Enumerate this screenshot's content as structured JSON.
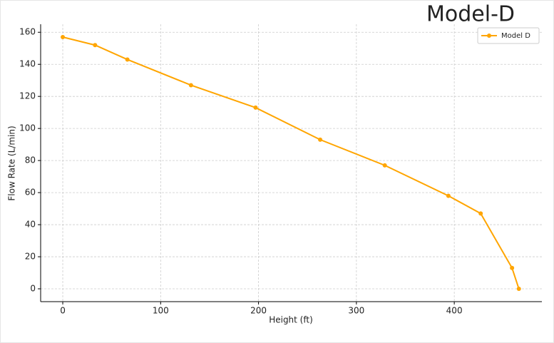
{
  "chart_data": {
    "type": "line",
    "title": "Model-D",
    "x_label": "Height (ft)",
    "y_label": "Flow Rate (L/min)",
    "x": [
      0,
      33,
      66,
      131,
      197,
      263,
      329,
      394,
      427,
      459,
      466
    ],
    "series": [
      {
        "name": "Model D",
        "color": "#ffa500",
        "values": [
          157,
          152,
          143,
          127,
          113,
          93,
          77,
          58,
          47,
          13,
          0
        ]
      }
    ],
    "xlim": [
      -22.6,
      489.5
    ],
    "xticks": [
      0,
      100,
      200,
      300,
      400
    ],
    "ylim": [
      -8,
      165
    ],
    "yticks": [
      0,
      20,
      40,
      60,
      80,
      100,
      120,
      140,
      160
    ],
    "grid": true,
    "legend": "upper-right"
  }
}
